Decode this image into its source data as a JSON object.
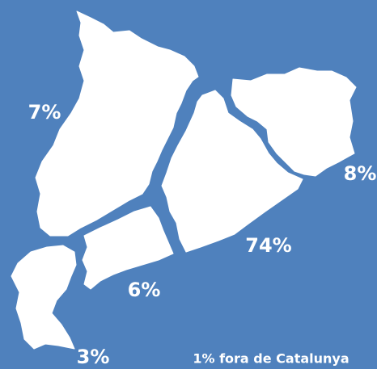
{
  "regions": [
    {
      "label": "7%"
    },
    {
      "label": "8%"
    },
    {
      "label": "74%"
    },
    {
      "label": "6%"
    },
    {
      "label": "3%"
    }
  ],
  "note": "1% fora de Catalunya"
}
